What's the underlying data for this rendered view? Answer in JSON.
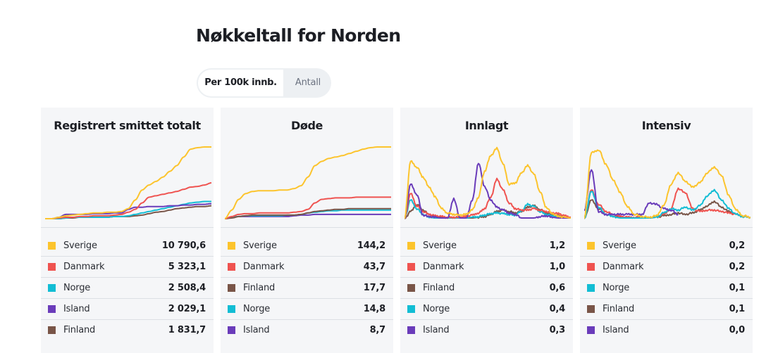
{
  "page": {
    "title": "Nøkkeltall for Norden",
    "toggle": {
      "options": [
        {
          "label": "Per 100k innb.",
          "active": true
        },
        {
          "label": "Antall",
          "active": false
        }
      ]
    }
  },
  "colors": {
    "Sverige": "#fcc42d",
    "Danmark": "#ef5350",
    "Norge": "#12bdd4",
    "Island": "#6a3cba",
    "Finland": "#795548"
  },
  "chart_data": [
    {
      "type": "line",
      "title": "Registrert smittet totalt",
      "xlabel": "",
      "ylabel": "",
      "note": "sparkline without axes; y values normalized 0-1 relative to chart max, shape estimated",
      "legend": [
        {
          "country": "Sverige",
          "value": "10 790,6"
        },
        {
          "country": "Danmark",
          "value": "5 323,1"
        },
        {
          "country": "Norge",
          "value": "2 508,4"
        },
        {
          "country": "Island",
          "value": "2 029,1"
        },
        {
          "country": "Finland",
          "value": "1 831,7"
        }
      ],
      "series": [
        {
          "name": "Finland",
          "values": [
            0,
            0,
            0,
            0.01,
            0.01,
            0.02,
            0.02,
            0.02,
            0.02,
            0.02,
            0.03,
            0.03,
            0.03,
            0.04,
            0.05,
            0.07,
            0.09,
            0.1,
            0.12,
            0.14,
            0.15,
            0.16,
            0.17,
            0.17,
            0.18
          ]
        },
        {
          "name": "Norge",
          "values": [
            0,
            0,
            0,
            0.01,
            0.02,
            0.02,
            0.02,
            0.02,
            0.02,
            0.02,
            0.03,
            0.03,
            0.04,
            0.06,
            0.08,
            0.1,
            0.12,
            0.14,
            0.16,
            0.18,
            0.2,
            0.22,
            0.23,
            0.24,
            0.24
          ]
        },
        {
          "name": "Island",
          "values": [
            0,
            0,
            0.02,
            0.06,
            0.06,
            0.06,
            0.06,
            0.07,
            0.07,
            0.07,
            0.08,
            0.08,
            0.13,
            0.16,
            0.16,
            0.17,
            0.17,
            0.17,
            0.18,
            0.18,
            0.19,
            0.19,
            0.2,
            0.2,
            0.21
          ]
        },
        {
          "name": "Danmark",
          "values": [
            0,
            0,
            0.01,
            0.02,
            0.02,
            0.03,
            0.03,
            0.04,
            0.04,
            0.04,
            0.05,
            0.06,
            0.09,
            0.13,
            0.22,
            0.3,
            0.32,
            0.34,
            0.36,
            0.38,
            0.41,
            0.44,
            0.45,
            0.47,
            0.5
          ]
        },
        {
          "name": "Sverige",
          "values": [
            0,
            0,
            0.02,
            0.04,
            0.05,
            0.06,
            0.07,
            0.08,
            0.08,
            0.09,
            0.09,
            0.1,
            0.14,
            0.26,
            0.4,
            0.47,
            0.52,
            0.58,
            0.66,
            0.74,
            0.86,
            0.97,
            0.99,
            1.0,
            1.0
          ]
        }
      ]
    },
    {
      "type": "line",
      "title": "Døde",
      "xlabel": "",
      "ylabel": "",
      "note": "sparkline without axes; y values normalized 0-1 relative to chart max, shape estimated",
      "legend": [
        {
          "country": "Sverige",
          "value": "144,2"
        },
        {
          "country": "Danmark",
          "value": "43,7"
        },
        {
          "country": "Finland",
          "value": "17,7"
        },
        {
          "country": "Norge",
          "value": "14,8"
        },
        {
          "country": "Island",
          "value": "8,7"
        }
      ],
      "series": [
        {
          "name": "Island",
          "values": [
            0,
            0.02,
            0.03,
            0.03,
            0.03,
            0.03,
            0.03,
            0.03,
            0.03,
            0.03,
            0.04,
            0.05,
            0.05,
            0.06,
            0.06,
            0.06,
            0.06,
            0.06,
            0.06,
            0.06,
            0.06,
            0.06,
            0.06,
            0.06,
            0.06
          ]
        },
        {
          "name": "Norge",
          "values": [
            0,
            0.02,
            0.03,
            0.04,
            0.04,
            0.04,
            0.04,
            0.04,
            0.04,
            0.05,
            0.05,
            0.06,
            0.08,
            0.09,
            0.1,
            0.11,
            0.11,
            0.12,
            0.12,
            0.12,
            0.12,
            0.12,
            0.12,
            0.12,
            0.12
          ]
        },
        {
          "name": "Finland",
          "values": [
            0,
            0.01,
            0.03,
            0.04,
            0.05,
            0.05,
            0.05,
            0.05,
            0.05,
            0.05,
            0.05,
            0.06,
            0.08,
            0.1,
            0.11,
            0.12,
            0.13,
            0.13,
            0.14,
            0.14,
            0.14,
            0.14,
            0.14,
            0.14,
            0.14
          ]
        },
        {
          "name": "Danmark",
          "values": [
            0,
            0.03,
            0.06,
            0.07,
            0.07,
            0.08,
            0.08,
            0.08,
            0.08,
            0.08,
            0.09,
            0.1,
            0.13,
            0.22,
            0.27,
            0.28,
            0.29,
            0.29,
            0.29,
            0.3,
            0.3,
            0.3,
            0.3,
            0.3,
            0.3
          ]
        },
        {
          "name": "Sverige",
          "values": [
            0,
            0.12,
            0.27,
            0.35,
            0.38,
            0.39,
            0.39,
            0.39,
            0.4,
            0.4,
            0.42,
            0.46,
            0.58,
            0.74,
            0.8,
            0.84,
            0.86,
            0.88,
            0.91,
            0.94,
            0.97,
            0.99,
            1.0,
            1.0,
            1.0
          ]
        }
      ]
    },
    {
      "type": "line",
      "title": "Innlagt",
      "xlabel": "",
      "ylabel": "",
      "note": "sparkline without axes; y values normalized 0-1 relative to chart max, shape estimated",
      "legend": [
        {
          "country": "Sverige",
          "value": "1,2"
        },
        {
          "country": "Danmark",
          "value": "1,0"
        },
        {
          "country": "Finland",
          "value": "0,6"
        },
        {
          "country": "Norge",
          "value": "0,4"
        },
        {
          "country": "Island",
          "value": "0,3"
        }
      ],
      "series": [
        {
          "name": "Finland",
          "values": [
            0,
            0.1,
            0.2,
            0.12,
            0.06,
            0.03,
            0.02,
            0.02,
            0.01,
            0.01,
            0.01,
            0.01,
            0.02,
            0.03,
            0.06,
            0.1,
            0.12,
            0.1,
            0.08,
            0.1,
            0.16,
            0.18,
            0.13,
            0.08,
            0.05,
            0.04,
            0.02,
            0.01
          ]
        },
        {
          "name": "Norge",
          "values": [
            0,
            0.26,
            0.14,
            0.06,
            0.02,
            0.01,
            0.01,
            0.01,
            0.01,
            0.01,
            0.01,
            0.02,
            0.03,
            0.05,
            0.07,
            0.08,
            0.07,
            0.06,
            0.05,
            0.11,
            0.2,
            0.17,
            0.1,
            0.06,
            0.04,
            0.02,
            0.01,
            0.01
          ]
        },
        {
          "name": "Danmark",
          "values": [
            0,
            0.35,
            0.18,
            0.1,
            0.06,
            0.04,
            0.03,
            0.02,
            0.02,
            0.02,
            0.03,
            0.05,
            0.08,
            0.14,
            0.3,
            0.55,
            0.4,
            0.22,
            0.14,
            0.12,
            0.12,
            0.14,
            0.12,
            0.1,
            0.08,
            0.07,
            0.04,
            0.02
          ]
        },
        {
          "name": "Island",
          "values": [
            0,
            0.48,
            0.34,
            0.05,
            0.03,
            0.02,
            0.01,
            0.01,
            0.28,
            0.01,
            0.01,
            0.25,
            0.78,
            0.45,
            0.26,
            0.16,
            0.12,
            0.08,
            0.06,
            0.01,
            0.01,
            0.01,
            0.03,
            0.04,
            0.02,
            0.01,
            0.01,
            0.01
          ]
        },
        {
          "name": "Sverige",
          "values": [
            0,
            0.8,
            0.72,
            0.58,
            0.44,
            0.3,
            0.14,
            0.08,
            0.06,
            0.05,
            0.06,
            0.12,
            0.3,
            0.66,
            0.88,
            0.98,
            0.76,
            0.48,
            0.5,
            0.64,
            0.74,
            0.62,
            0.38,
            0.16,
            0.07,
            0.03,
            0.02,
            0.01
          ]
        }
      ]
    },
    {
      "type": "line",
      "title": "Intensiv",
      "xlabel": "",
      "ylabel": "",
      "note": "sparkline without axes; y values normalized 0-1 relative to chart max, shape estimated",
      "legend": [
        {
          "country": "Sverige",
          "value": "0,2"
        },
        {
          "country": "Danmark",
          "value": "0,2"
        },
        {
          "country": "Norge",
          "value": "0,1"
        },
        {
          "country": "Finland",
          "value": "0,1"
        },
        {
          "country": "Island",
          "value": "0,0"
        }
      ],
      "series": [
        {
          "name": "Finland",
          "values": [
            0,
            0.26,
            0.14,
            0.06,
            0.03,
            0.02,
            0.01,
            0.01,
            0.01,
            0.01,
            0.02,
            0.04,
            0.06,
            0.08,
            0.06,
            0.08,
            0.12,
            0.18,
            0.24,
            0.16,
            0.1,
            0.06,
            0.03,
            0.02
          ]
        },
        {
          "name": "Danmark",
          "values": [
            0,
            0.4,
            0.2,
            0.1,
            0.06,
            0.03,
            0.02,
            0.02,
            0.02,
            0.02,
            0.03,
            0.06,
            0.14,
            0.42,
            0.36,
            0.14,
            0.1,
            0.12,
            0.12,
            0.1,
            0.08,
            0.06,
            0.04,
            0.02
          ]
        },
        {
          "name": "Norge",
          "values": [
            0,
            0.38,
            0.16,
            0.06,
            0.03,
            0.01,
            0.01,
            0.01,
            0.01,
            0.01,
            0.02,
            0.08,
            0.14,
            0.12,
            0.16,
            0.12,
            0.18,
            0.32,
            0.4,
            0.26,
            0.14,
            0.06,
            0.03,
            0.02
          ]
        },
        {
          "name": "Island",
          "values": [
            0.1,
            0.68,
            0.1,
            0.06,
            0.06,
            0.06,
            0.06,
            0.06,
            0.06,
            0.22,
            0.2,
            0.14,
            0.12,
            0.06,
            null,
            null,
            null,
            null,
            null,
            null,
            null,
            null,
            null,
            null
          ]
        },
        {
          "name": "Sverige",
          "values": [
            0,
            0.92,
            0.96,
            0.76,
            0.54,
            0.36,
            0.16,
            0.06,
            0.03,
            0.02,
            0.04,
            0.18,
            0.48,
            0.64,
            0.52,
            0.44,
            0.5,
            0.64,
            0.72,
            0.6,
            0.32,
            0.12,
            0.04,
            0.02
          ]
        }
      ]
    }
  ]
}
